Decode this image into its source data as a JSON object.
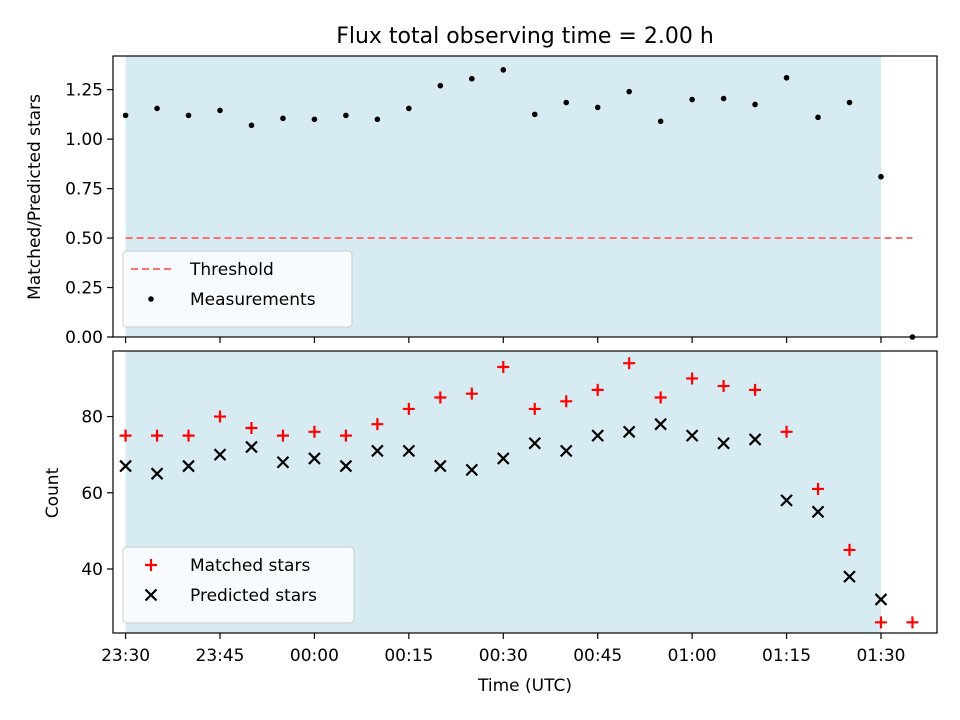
{
  "figure": {
    "title": "Flux total observing time = 2.00 h",
    "xlabel": "Time (UTC)"
  },
  "chart_data": [
    {
      "type": "scatter",
      "panel": "top",
      "ylabel": "Matched/Predicted stars",
      "xlim": [
        "23:28:00",
        "01:38:54"
      ],
      "ylim": [
        0,
        1.42
      ],
      "yticks": [
        "0.00",
        "0.25",
        "0.50",
        "0.75",
        "1.00",
        "1.25"
      ],
      "shaded_span": [
        "23:30",
        "01:30"
      ],
      "shade_color": "#add8e6",
      "grid": false,
      "legend_position": "lower-left",
      "series": [
        {
          "name": "Threshold",
          "kind": "dashed-line",
          "color": "#ff7070",
          "points": [
            [
              "23:30",
              0.5
            ],
            [
              "01:35",
              0.5
            ]
          ]
        },
        {
          "name": "Measurements",
          "kind": "dot",
          "color": "#000000",
          "points": [
            [
              "23:30",
              1.12
            ],
            [
              "23:35",
              1.155
            ],
            [
              "23:40",
              1.12
            ],
            [
              "23:45",
              1.145
            ],
            [
              "23:50",
              1.07
            ],
            [
              "23:55",
              1.105
            ],
            [
              "00:00",
              1.1
            ],
            [
              "00:05",
              1.12
            ],
            [
              "00:10",
              1.1
            ],
            [
              "00:15",
              1.155
            ],
            [
              "00:20",
              1.27
            ],
            [
              "00:25",
              1.305
            ],
            [
              "00:30",
              1.35
            ],
            [
              "00:35",
              1.125
            ],
            [
              "00:40",
              1.185
            ],
            [
              "00:45",
              1.16
            ],
            [
              "00:50",
              1.24
            ],
            [
              "00:55",
              1.09
            ],
            [
              "01:00",
              1.2
            ],
            [
              "01:05",
              1.205
            ],
            [
              "01:10",
              1.175
            ],
            [
              "01:15",
              1.31
            ],
            [
              "01:20",
              1.11
            ],
            [
              "01:25",
              1.185
            ],
            [
              "01:30",
              0.81
            ],
            [
              "01:35",
              0.0
            ]
          ]
        }
      ]
    },
    {
      "type": "scatter",
      "panel": "bottom",
      "ylabel": "Count",
      "xlim": [
        "23:28:00",
        "01:38:54"
      ],
      "ylim": [
        23.2,
        97.2
      ],
      "yticks": [
        "40",
        "60",
        "80"
      ],
      "xticks": [
        "23:30",
        "23:45",
        "00:00",
        "00:15",
        "00:30",
        "00:45",
        "01:00",
        "01:15",
        "01:30"
      ],
      "shaded_span": [
        "23:30",
        "01:30"
      ],
      "shade_color": "#add8e6",
      "grid": false,
      "legend_position": "lower-left",
      "series": [
        {
          "name": "Matched stars",
          "kind": "plus",
          "color": "#ff0000",
          "points": [
            [
              "23:30",
              75
            ],
            [
              "23:35",
              75
            ],
            [
              "23:40",
              75
            ],
            [
              "23:45",
              80
            ],
            [
              "23:50",
              77
            ],
            [
              "23:55",
              75
            ],
            [
              "00:00",
              76
            ],
            [
              "00:05",
              75
            ],
            [
              "00:10",
              78
            ],
            [
              "00:15",
              82
            ],
            [
              "00:20",
              85
            ],
            [
              "00:25",
              86
            ],
            [
              "00:30",
              93
            ],
            [
              "00:35",
              82
            ],
            [
              "00:40",
              84
            ],
            [
              "00:45",
              87
            ],
            [
              "00:50",
              94
            ],
            [
              "00:55",
              85
            ],
            [
              "01:00",
              90
            ],
            [
              "01:05",
              88
            ],
            [
              "01:10",
              87
            ],
            [
              "01:15",
              76
            ],
            [
              "01:20",
              61
            ],
            [
              "01:25",
              45
            ],
            [
              "01:30",
              26
            ],
            [
              "01:35",
              26
            ]
          ]
        },
        {
          "name": "Predicted stars",
          "kind": "x",
          "color": "#000000",
          "points": [
            [
              "23:30",
              67
            ],
            [
              "23:35",
              65
            ],
            [
              "23:40",
              67
            ],
            [
              "23:45",
              70
            ],
            [
              "23:50",
              72
            ],
            [
              "23:55",
              68
            ],
            [
              "00:00",
              69
            ],
            [
              "00:05",
              67
            ],
            [
              "00:10",
              71
            ],
            [
              "00:15",
              71
            ],
            [
              "00:20",
              67
            ],
            [
              "00:25",
              66
            ],
            [
              "00:30",
              69
            ],
            [
              "00:35",
              73
            ],
            [
              "00:40",
              71
            ],
            [
              "00:45",
              75
            ],
            [
              "00:50",
              76
            ],
            [
              "00:55",
              78
            ],
            [
              "01:00",
              75
            ],
            [
              "01:05",
              73
            ],
            [
              "01:10",
              74
            ],
            [
              "01:15",
              58
            ],
            [
              "01:20",
              55
            ],
            [
              "01:25",
              38
            ],
            [
              "01:30",
              32
            ]
          ]
        }
      ]
    }
  ]
}
